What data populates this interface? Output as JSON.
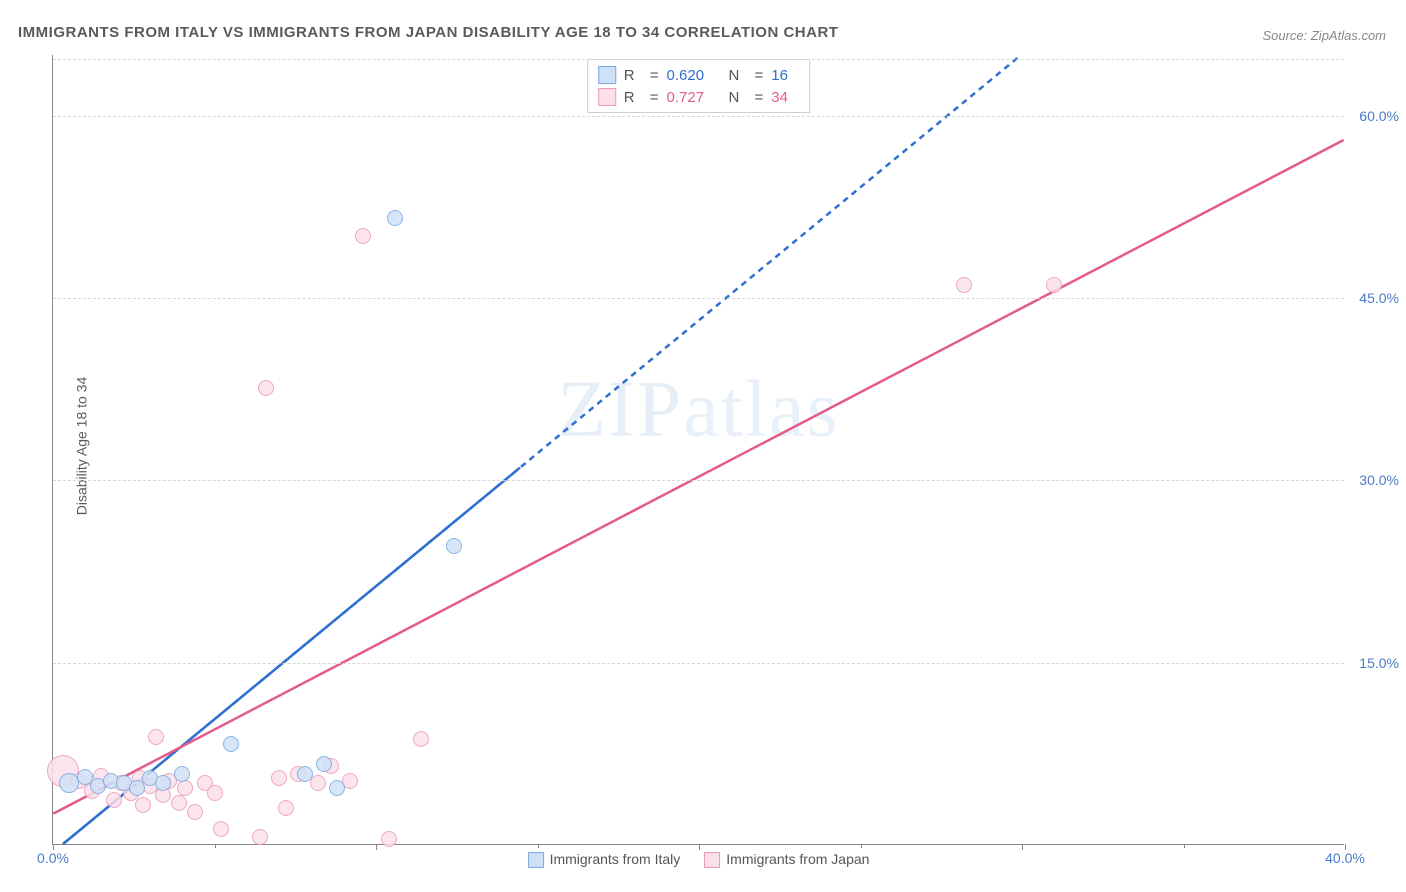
{
  "title": "IMMIGRANTS FROM ITALY VS IMMIGRANTS FROM JAPAN DISABILITY AGE 18 TO 34 CORRELATION CHART",
  "source": "Source: ZipAtlas.com",
  "y_axis_label": "Disability Age 18 to 34",
  "watermark": "ZIPatlas",
  "chart": {
    "type": "scatter-correlation",
    "background_color": "#ffffff",
    "grid_color": "#d8d8d8",
    "axis_color": "#888888",
    "tick_label_color": "#4a7bc8",
    "tick_label_fontsize": 14,
    "title_color": "#5a5a5a",
    "title_fontsize": 15,
    "xlim": [
      0,
      40
    ],
    "ylim": [
      0,
      65
    ],
    "y_ticks": [
      15,
      30,
      45,
      60
    ],
    "y_tick_labels": [
      "15.0%",
      "30.0%",
      "45.0%",
      "60.0%"
    ],
    "x_ticks": [
      0,
      10,
      20,
      30,
      40
    ],
    "x_tick_labels": [
      "0.0%",
      "",
      "",
      "",
      "40.0%"
    ],
    "series": [
      {
        "name": "Immigrants from Italy",
        "color_fill": "#cfe1f7",
        "color_stroke": "#7aa8e0",
        "line_color": "#2f6fd0",
        "line_dash": "6 5",
        "r_value": "0.620",
        "n_value": "16",
        "trend": {
          "x1": 0.3,
          "y1": 0,
          "x2": 30,
          "y2": 65
        },
        "points": [
          {
            "x": 0.5,
            "y": 5.0,
            "r": 10
          },
          {
            "x": 1.0,
            "y": 5.5,
            "r": 8
          },
          {
            "x": 1.4,
            "y": 4.8,
            "r": 8
          },
          {
            "x": 1.8,
            "y": 5.2,
            "r": 8
          },
          {
            "x": 2.2,
            "y": 5.0,
            "r": 8
          },
          {
            "x": 2.6,
            "y": 4.6,
            "r": 8
          },
          {
            "x": 3.0,
            "y": 5.4,
            "r": 8
          },
          {
            "x": 3.4,
            "y": 5.0,
            "r": 8
          },
          {
            "x": 4.0,
            "y": 5.8,
            "r": 8
          },
          {
            "x": 5.5,
            "y": 8.2,
            "r": 8
          },
          {
            "x": 7.8,
            "y": 5.8,
            "r": 8
          },
          {
            "x": 8.4,
            "y": 6.6,
            "r": 8
          },
          {
            "x": 8.8,
            "y": 4.6,
            "r": 8
          },
          {
            "x": 10.6,
            "y": 51.5,
            "r": 8
          },
          {
            "x": 12.4,
            "y": 24.5,
            "r": 8
          }
        ]
      },
      {
        "name": "Immigrants from Japan",
        "color_fill": "#fbe0eb",
        "color_stroke": "#eb9ab8",
        "line_color": "#e45a8a",
        "line_dash": "",
        "r_value": "0.727",
        "n_value": "34",
        "trend": {
          "x1": 0,
          "y1": 2.5,
          "x2": 40,
          "y2": 58
        },
        "points": [
          {
            "x": 0.3,
            "y": 6.0,
            "r": 16
          },
          {
            "x": 0.8,
            "y": 5.2,
            "r": 8
          },
          {
            "x": 1.2,
            "y": 4.4,
            "r": 8
          },
          {
            "x": 1.5,
            "y": 5.6,
            "r": 8
          },
          {
            "x": 1.9,
            "y": 3.6,
            "r": 8
          },
          {
            "x": 2.1,
            "y": 5.0,
            "r": 8
          },
          {
            "x": 2.4,
            "y": 4.2,
            "r": 8
          },
          {
            "x": 2.7,
            "y": 5.4,
            "r": 8
          },
          {
            "x": 2.8,
            "y": 3.2,
            "r": 8
          },
          {
            "x": 3.0,
            "y": 4.8,
            "r": 8
          },
          {
            "x": 3.2,
            "y": 8.8,
            "r": 8
          },
          {
            "x": 3.4,
            "y": 4.0,
            "r": 8
          },
          {
            "x": 3.6,
            "y": 5.2,
            "r": 8
          },
          {
            "x": 3.9,
            "y": 3.4,
            "r": 8
          },
          {
            "x": 4.1,
            "y": 4.6,
            "r": 8
          },
          {
            "x": 4.4,
            "y": 2.6,
            "r": 8
          },
          {
            "x": 4.7,
            "y": 5.0,
            "r": 8
          },
          {
            "x": 5.0,
            "y": 4.2,
            "r": 8
          },
          {
            "x": 5.2,
            "y": 1.2,
            "r": 8
          },
          {
            "x": 6.4,
            "y": 0.6,
            "r": 8
          },
          {
            "x": 6.6,
            "y": 37.5,
            "r": 8
          },
          {
            "x": 7.0,
            "y": 5.4,
            "r": 8
          },
          {
            "x": 7.2,
            "y": 3.0,
            "r": 8
          },
          {
            "x": 7.6,
            "y": 5.8,
            "r": 8
          },
          {
            "x": 8.2,
            "y": 5.0,
            "r": 8
          },
          {
            "x": 8.6,
            "y": 6.4,
            "r": 8
          },
          {
            "x": 9.2,
            "y": 5.2,
            "r": 8
          },
          {
            "x": 9.6,
            "y": 50.0,
            "r": 8
          },
          {
            "x": 10.4,
            "y": 0.4,
            "r": 8
          },
          {
            "x": 11.4,
            "y": 8.6,
            "r": 8
          },
          {
            "x": 28.2,
            "y": 46.0,
            "r": 8
          },
          {
            "x": 31.0,
            "y": 46.0,
            "r": 8
          }
        ]
      }
    ]
  },
  "legend_top": {
    "border_color": "#cccccc"
  },
  "legend_bottom_labels": [
    "Immigrants from Italy",
    "Immigrants from Japan"
  ]
}
